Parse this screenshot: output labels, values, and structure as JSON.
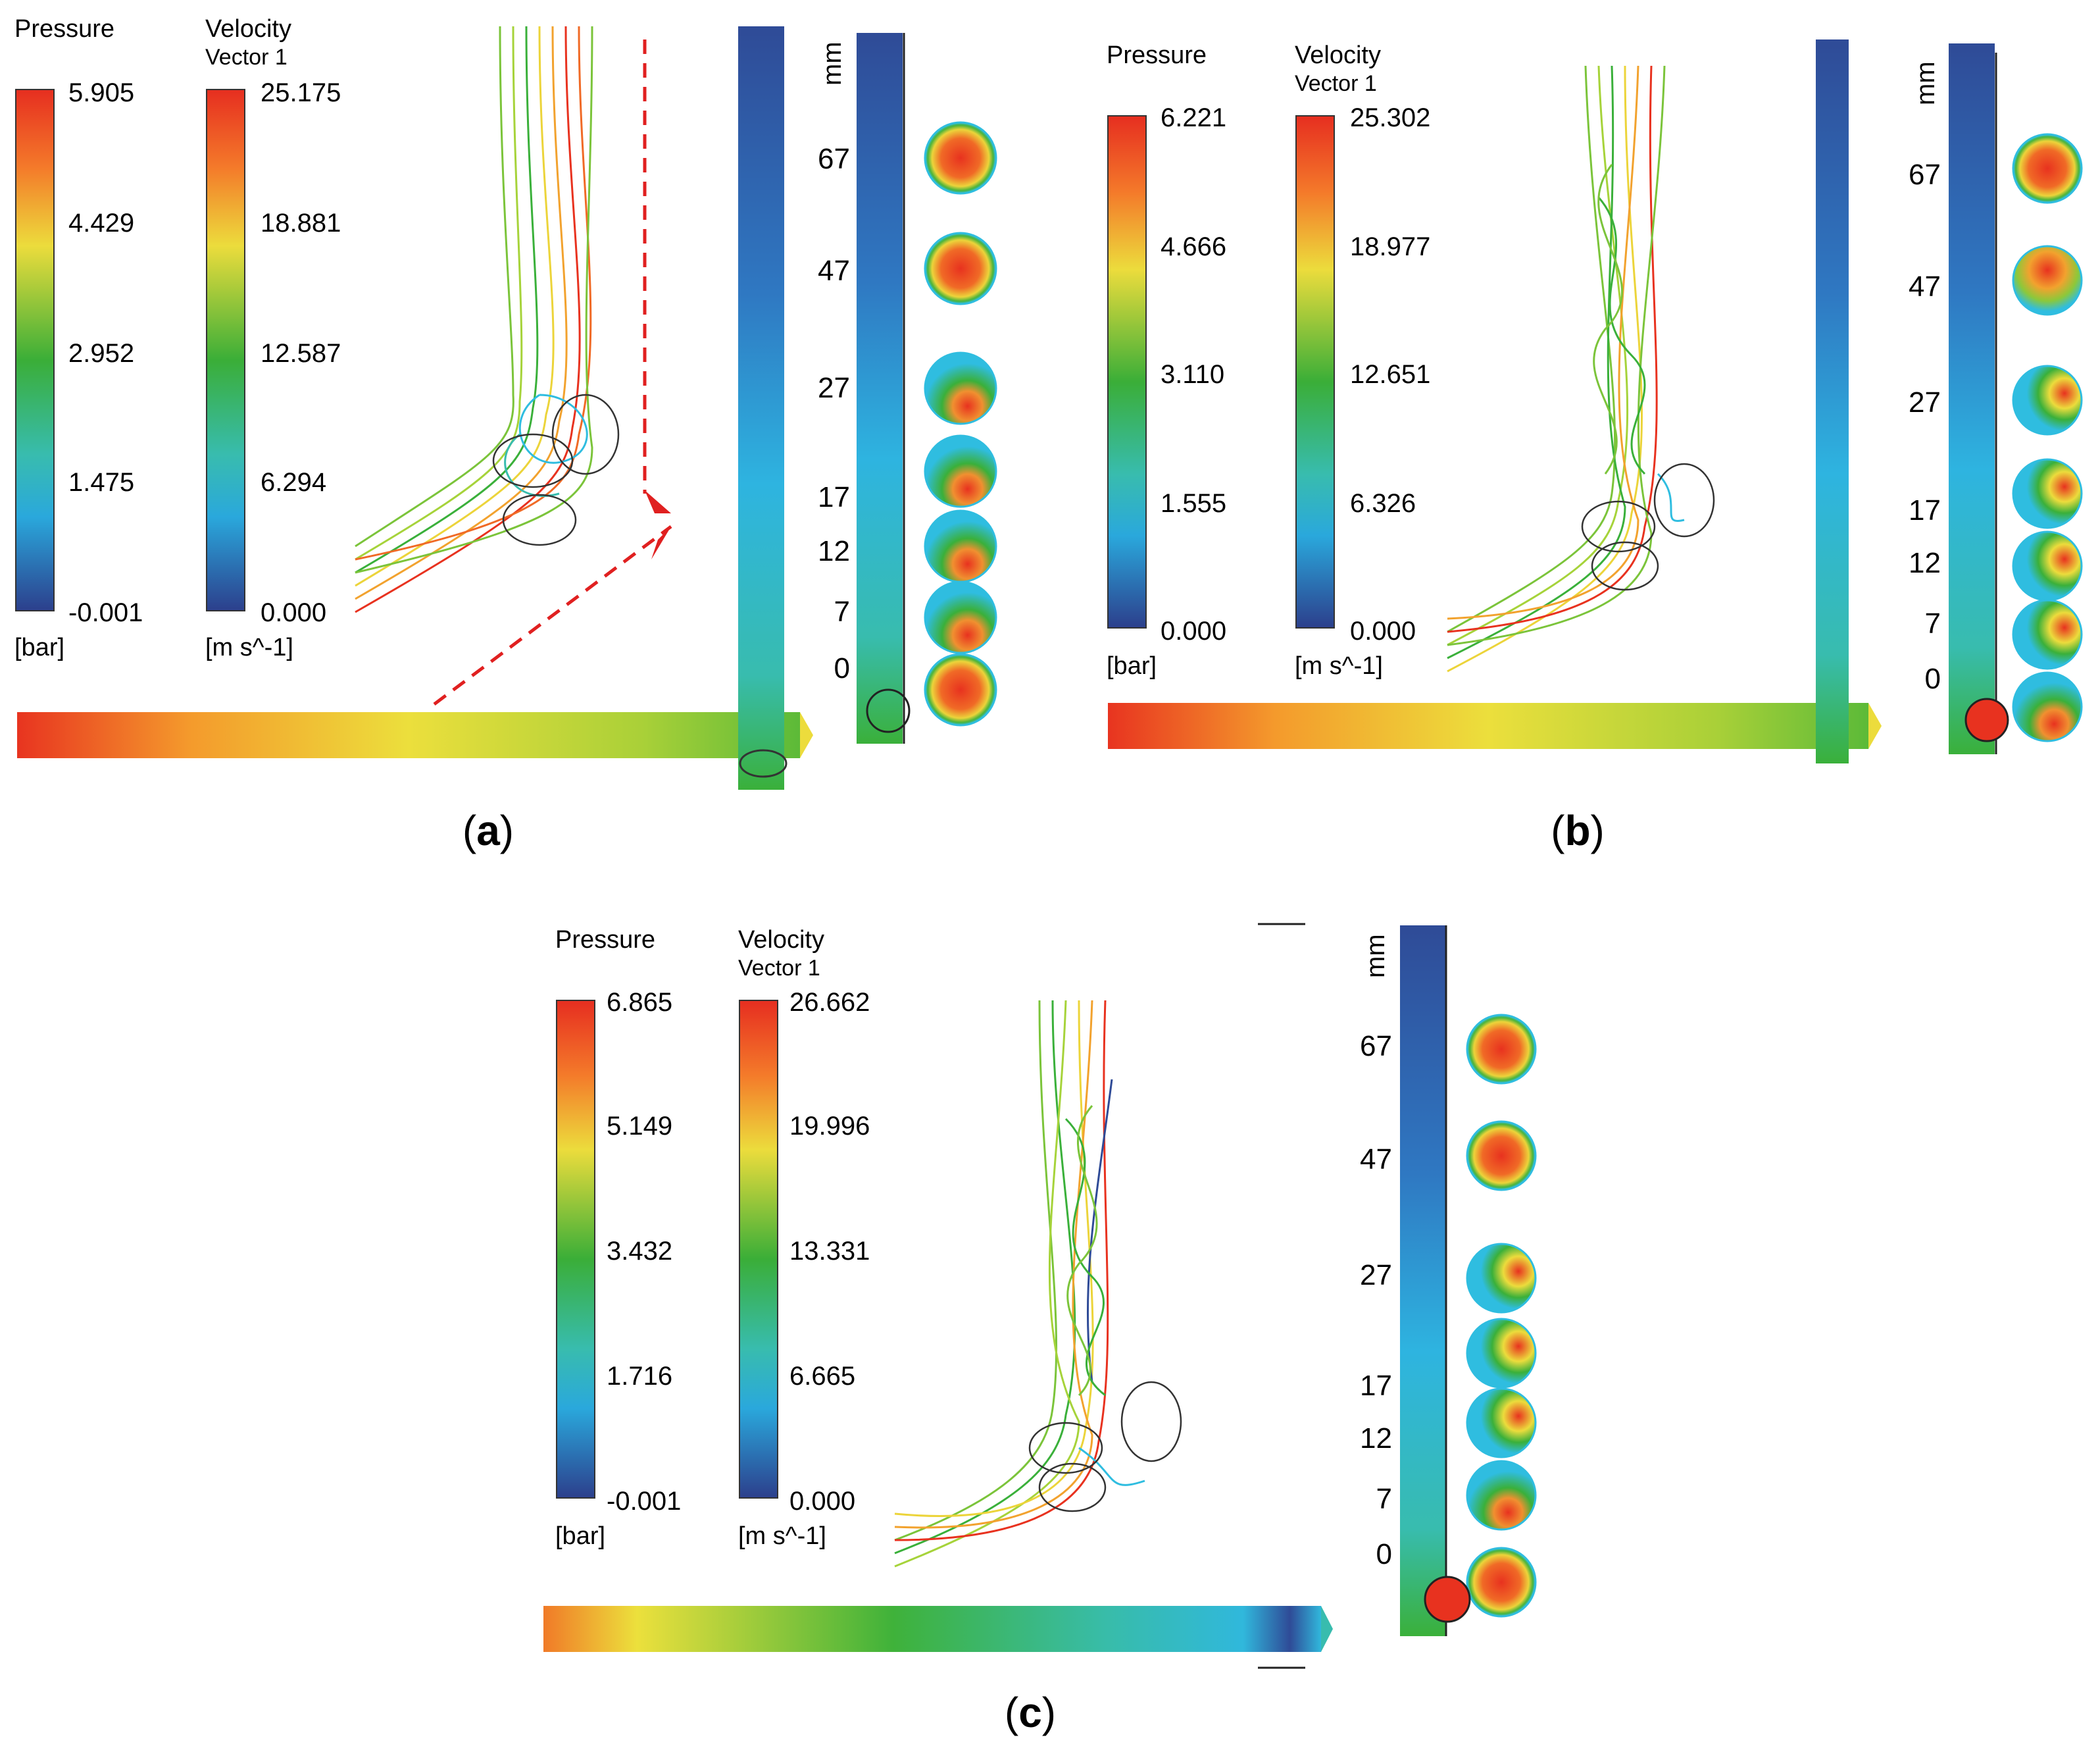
{
  "legend_titles": {
    "pressure": "Pressure",
    "velocity": "Velocity",
    "velocity_sub": "Vector 1",
    "pressure_unit": "[bar]",
    "velocity_unit": "[m s^-1]"
  },
  "axis_unit": "mm",
  "position_ticks": [
    "67",
    "47",
    "27",
    "17",
    "12",
    "7",
    "0"
  ],
  "panels": [
    {
      "caption": "a",
      "pressure_ticks": [
        "5.905",
        "4.429",
        "2.952",
        "1.475",
        "-0.001"
      ],
      "velocity_ticks": [
        "25.175",
        "18.881",
        "12.587",
        "6.294",
        "0.000"
      ]
    },
    {
      "caption": "b",
      "pressure_ticks": [
        "6.221",
        "4.666",
        "3.110",
        "1.555",
        "0.000"
      ],
      "velocity_ticks": [
        "25.302",
        "18.977",
        "12.651",
        "6.326",
        "0.000"
      ]
    },
    {
      "caption": "c",
      "pressure_ticks": [
        "6.865",
        "5.149",
        "3.432",
        "1.716",
        "-0.001"
      ],
      "velocity_ticks": [
        "26.662",
        "19.996",
        "13.331",
        "6.665",
        "0.000"
      ]
    }
  ],
  "colors": {
    "red": "#e8321f",
    "orange": "#f28a28",
    "yellow": "#e9e53a",
    "green": "#3ab03a",
    "cyan": "#2fbde0",
    "blue": "#2f4b97",
    "dashed_arrow": "#e02020"
  }
}
